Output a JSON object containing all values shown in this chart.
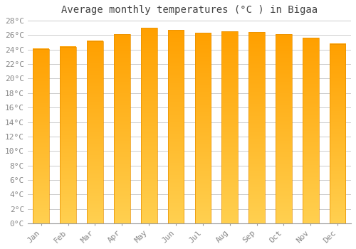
{
  "title": "Average monthly temperatures (°C ) in Bigaa",
  "months": [
    "Jan",
    "Feb",
    "Mar",
    "Apr",
    "May",
    "Jun",
    "Jul",
    "Aug",
    "Sep",
    "Oct",
    "Nov",
    "Dec"
  ],
  "values": [
    24.1,
    24.4,
    25.2,
    26.1,
    27.0,
    26.7,
    26.3,
    26.5,
    26.4,
    26.1,
    25.6,
    24.8
  ],
  "bar_color": "#FFA500",
  "bar_color_bottom": "#FFD060",
  "background_color": "#FFFFFF",
  "grid_color": "#CCCCCC",
  "ytick_max": 28,
  "ytick_step": 2,
  "title_fontsize": 10,
  "tick_fontsize": 8
}
